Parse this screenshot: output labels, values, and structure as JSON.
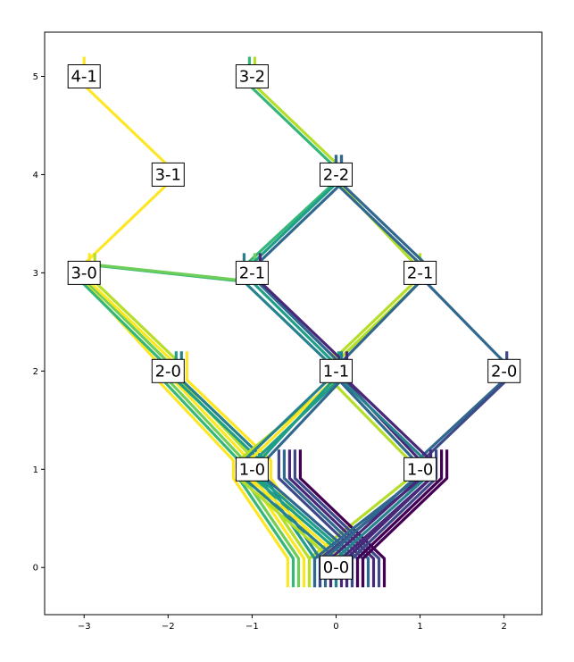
{
  "chart_data": {
    "type": "line",
    "title": "",
    "xlabel": "",
    "ylabel": "",
    "xlim": [
      -3.47,
      2.45
    ],
    "ylim": [
      -0.48,
      5.45
    ],
    "grid": false,
    "legend": "none",
    "colormap": [
      "#440154",
      "#482878",
      "#3e4989",
      "#31688e",
      "#26828e",
      "#1f9e89",
      "#35b779",
      "#6ece58",
      "#b5de2b",
      "#fde725"
    ],
    "xticks": [
      {
        "value": -3,
        "label": "−3"
      },
      {
        "value": -2,
        "label": "−2"
      },
      {
        "value": -1,
        "label": "−1"
      },
      {
        "value": 0,
        "label": "0"
      },
      {
        "value": 1,
        "label": "1"
      },
      {
        "value": 2,
        "label": "2"
      }
    ],
    "yticks": [
      {
        "value": 0,
        "label": "0"
      },
      {
        "value": 1,
        "label": "1"
      },
      {
        "value": 2,
        "label": "2"
      },
      {
        "value": 3,
        "label": "3"
      },
      {
        "value": 4,
        "label": "4"
      },
      {
        "value": 5,
        "label": "5"
      }
    ],
    "nodes": [
      {
        "id": "n00",
        "label": "0-0",
        "x": 0,
        "y": 0
      },
      {
        "id": "n10a",
        "label": "1-0",
        "x": -1,
        "y": 1
      },
      {
        "id": "n10b",
        "label": "1-0",
        "x": 1,
        "y": 1
      },
      {
        "id": "n20a",
        "label": "2-0",
        "x": -2,
        "y": 2
      },
      {
        "id": "n11",
        "label": "1-1",
        "x": 0,
        "y": 2
      },
      {
        "id": "n20b",
        "label": "2-0",
        "x": 2,
        "y": 2
      },
      {
        "id": "n30",
        "label": "3-0",
        "x": -3,
        "y": 3
      },
      {
        "id": "n21a",
        "label": "2-1",
        "x": -1,
        "y": 3
      },
      {
        "id": "n21b",
        "label": "2-1",
        "x": 1,
        "y": 3
      },
      {
        "id": "n31",
        "label": "3-1",
        "x": -2,
        "y": 4
      },
      {
        "id": "n22",
        "label": "2-2",
        "x": 0,
        "y": 4
      },
      {
        "id": "n41",
        "label": "4-1",
        "x": -3,
        "y": 5
      },
      {
        "id": "n32",
        "label": "3-2",
        "x": -1,
        "y": 5
      }
    ],
    "paths": [
      {
        "nodes": [
          "n00",
          "n10a",
          "n20a",
          "n30",
          "n31",
          "n41"
        ],
        "color": 1.0
      },
      {
        "nodes": [
          "n00",
          "n10a",
          "n20a",
          "n30",
          "n21a",
          "n22",
          "n32"
        ],
        "color": 0.7
      },
      {
        "nodes": [
          "n00",
          "n10b",
          "n11",
          "n21b",
          "n22",
          "n32"
        ],
        "color": 0.85
      },
      {
        "nodes": [
          "n00",
          "n10a",
          "n20a",
          "n30",
          "n21a"
        ],
        "color": 0.75
      },
      {
        "nodes": [
          "n00",
          "n10a",
          "n20a",
          "n30"
        ],
        "color": 0.95
      },
      {
        "nodes": [
          "n00",
          "n10a",
          "n20a",
          "n30"
        ],
        "color": 0.88
      },
      {
        "nodes": [
          "n00",
          "n10a",
          "n20a"
        ],
        "color": 0.55
      },
      {
        "nodes": [
          "n00",
          "n10a",
          "n20a"
        ],
        "color": 0.42
      },
      {
        "nodes": [
          "n00",
          "n10a",
          "n20a"
        ],
        "color": 1.0
      },
      {
        "nodes": [
          "n00",
          "n10a",
          "n11",
          "n21b"
        ],
        "color": 0.9
      },
      {
        "nodes": [
          "n00",
          "n10a",
          "n11",
          "n21a"
        ],
        "color": 0.4
      },
      {
        "nodes": [
          "n00",
          "n10a",
          "n11"
        ],
        "color": 1.0
      },
      {
        "nodes": [
          "n00",
          "n10a",
          "n11"
        ],
        "color": 0.6
      },
      {
        "nodes": [
          "n00",
          "n10a",
          "n11",
          "n21a",
          "n22"
        ],
        "color": 0.5
      },
      {
        "nodes": [
          "n00",
          "n10a",
          "n11",
          "n21b",
          "n22"
        ],
        "color": 0.35
      },
      {
        "nodes": [
          "n00",
          "n10a"
        ],
        "color": 0.2
      },
      {
        "nodes": [
          "n00",
          "n10a"
        ],
        "color": 0.3
      },
      {
        "nodes": [
          "n00",
          "n10a"
        ],
        "color": 0.1
      },
      {
        "nodes": [
          "n00",
          "n10a"
        ],
        "color": 0.25
      },
      {
        "nodes": [
          "n00",
          "n10a"
        ],
        "color": 0.0
      },
      {
        "nodes": [
          "n00",
          "n10b",
          "n20b",
          "n21b",
          "n22"
        ],
        "color": 0.3
      },
      {
        "nodes": [
          "n00",
          "n10b",
          "n20b"
        ],
        "color": 0.2
      },
      {
        "nodes": [
          "n00",
          "n10b",
          "n11",
          "n21a",
          "n22"
        ],
        "color": 0.28
      },
      {
        "nodes": [
          "n00",
          "n10b",
          "n11",
          "n21a"
        ],
        "color": 0.15
      },
      {
        "nodes": [
          "n00",
          "n10b",
          "n11"
        ],
        "color": 0.45
      },
      {
        "nodes": [
          "n00",
          "n10b",
          "n11"
        ],
        "color": 0.12
      },
      {
        "nodes": [
          "n00",
          "n10b"
        ],
        "color": 0.08
      },
      {
        "nodes": [
          "n00",
          "n10b"
        ],
        "color": 0.18
      },
      {
        "nodes": [
          "n00",
          "n10b"
        ],
        "color": 0.0
      },
      {
        "nodes": [
          "n00",
          "n10b"
        ],
        "color": 0.05
      }
    ]
  }
}
